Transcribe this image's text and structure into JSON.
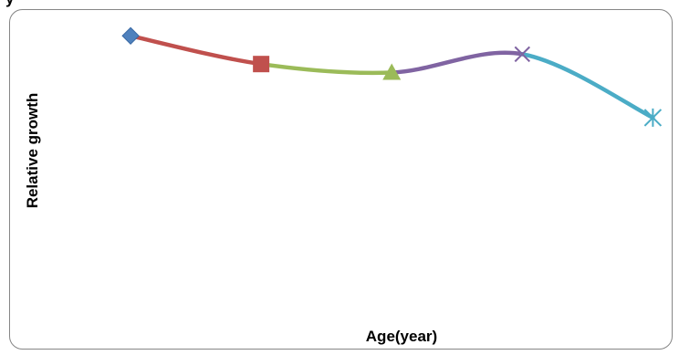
{
  "chart_data": {
    "type": "line",
    "title": "y",
    "xlabel": "Age(year)",
    "ylabel": "Relative growth",
    "x": [
      1,
      2,
      3,
      4,
      5
    ],
    "values": [
      0.94,
      0.74,
      0.68,
      0.81,
      0.36
    ],
    "ylim": [
      -1.2,
      1.0
    ],
    "xlim": [
      0.0,
      5.2
    ],
    "grid": false,
    "legend": "none",
    "show_ticks": false,
    "segment_colors": [
      "#c0504d",
      "#9bbb59",
      "#8064a2",
      "#4bacc6"
    ],
    "marker_colors": [
      "#4f81bd",
      "#c0504d",
      "#9bbb59",
      "#8064a2",
      "#4bacc6"
    ],
    "markers": [
      "diamond",
      "square",
      "triangle",
      "x",
      "star"
    ]
  }
}
